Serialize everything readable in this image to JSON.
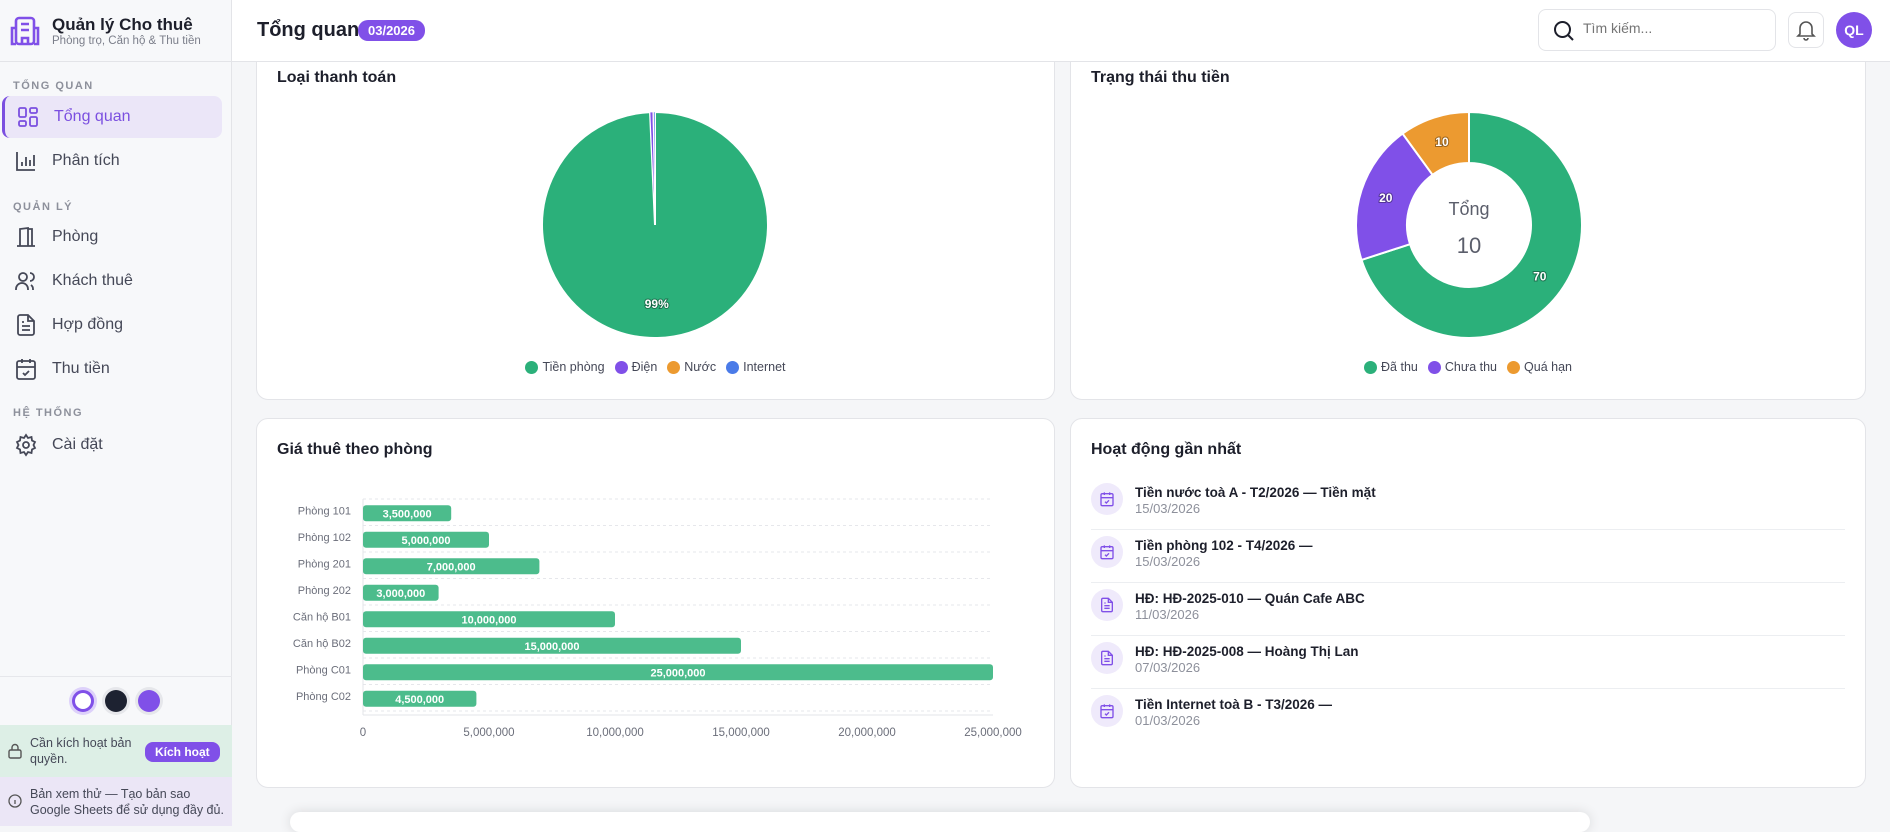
{
  "brand": {
    "title": "Quản lý Cho thuê",
    "subtitle": "Phòng trọ, Căn hộ & Thu tiền"
  },
  "sidebar": {
    "sections": [
      {
        "label": "TỔNG QUAN",
        "items": [
          {
            "label": "Tổng quan",
            "icon": "dashboard-icon",
            "active": true
          },
          {
            "label": "Phân tích",
            "icon": "bar-chart-icon"
          }
        ]
      },
      {
        "label": "QUẢN LÝ",
        "items": [
          {
            "label": "Phòng",
            "icon": "door-icon"
          },
          {
            "label": "Khách thuê",
            "icon": "users-icon"
          },
          {
            "label": "Hợp đồng",
            "icon": "document-icon"
          },
          {
            "label": "Thu tiền",
            "icon": "calendar-check-icon"
          }
        ]
      },
      {
        "label": "HỆ THỐNG",
        "items": [
          {
            "label": "Cài đặt",
            "icon": "gear-icon"
          }
        ]
      }
    ],
    "themes": [
      "#ffffff",
      "#1d2231",
      "#8050e8"
    ],
    "license": {
      "text": "Cần kích hoạt bản quyền.",
      "button": "Kích hoạt"
    },
    "trial": {
      "text": "Bản xem thử — Tạo bản sao Google Sheets để sử dụng đầy đủ."
    }
  },
  "header": {
    "title": "Tổng quan",
    "badge": "03/2026",
    "search_placeholder": "Tìm kiếm...",
    "avatar": "QL"
  },
  "colors": {
    "accent": "#8050e8",
    "green": "#2bb07a",
    "purple": "#8050e8",
    "orange": "#ec9a30",
    "blue": "#4a7be8",
    "bar": "#4cbc8c"
  },
  "chart_data": [
    {
      "type": "pie",
      "title": "Loại thanh toán",
      "categories": [
        "Tiền phòng",
        "Điện",
        "Nước",
        "Internet"
      ],
      "values": [
        99.3,
        0.4,
        0.1,
        0.2
      ],
      "data_labels": [
        "99%"
      ],
      "legend": "bottom",
      "colors": [
        "#2bb07a",
        "#8050e8",
        "#ec9a30",
        "#4a7be8"
      ]
    },
    {
      "type": "pie",
      "title": "Trạng thái thu tiền",
      "categories": [
        "Đã thu",
        "Chưa thu",
        "Quá hạn"
      ],
      "values": [
        70,
        20,
        10
      ],
      "data_labels": [
        "70",
        "20",
        "10"
      ],
      "center_label": "Tổng",
      "center_value": "10",
      "legend": "bottom",
      "colors": [
        "#2bb07a",
        "#8050e8",
        "#ec9a30"
      ]
    },
    {
      "type": "bar",
      "orientation": "horizontal",
      "title": "Giá thuê theo phòng",
      "categories": [
        "Phòng 101",
        "Phòng 102",
        "Phòng 201",
        "Phòng 202",
        "Căn hộ B01",
        "Căn hộ B02",
        "Phòng C01",
        "Phòng C02"
      ],
      "values": [
        3500000,
        5000000,
        7000000,
        3000000,
        10000000,
        15000000,
        25000000,
        4500000
      ],
      "data_labels": [
        "3,500,000",
        "5,000,000",
        "7,000,000",
        "3,000,000",
        "10,000,000",
        "15,000,000",
        "25,000,000",
        "4,500,000"
      ],
      "xlim": [
        0,
        25000000
      ],
      "xticks": [
        "0",
        "5,000,000",
        "10,000,000",
        "15,000,000",
        "20,000,000",
        "25,000,000"
      ],
      "grid": true
    }
  ],
  "activity": {
    "title": "Hoạt động gần nhất",
    "items": [
      {
        "title": "Tiền nước toà A - T2/2026 — Tiền mặt",
        "date": "15/03/2026",
        "icon": "calendar-check-icon"
      },
      {
        "title": "Tiền phòng 102 - T4/2026 —",
        "date": "15/03/2026",
        "icon": "calendar-check-icon"
      },
      {
        "title": "HĐ: HĐ-2025-010 — Quán Cafe ABC",
        "date": "11/03/2026",
        "icon": "document-icon"
      },
      {
        "title": "HĐ: HĐ-2025-008 — Hoàng Thị Lan",
        "date": "07/03/2026",
        "icon": "document-icon"
      },
      {
        "title": "Tiền Internet toà B - T3/2026 —",
        "date": "01/03/2026",
        "icon": "calendar-check-icon"
      }
    ]
  }
}
